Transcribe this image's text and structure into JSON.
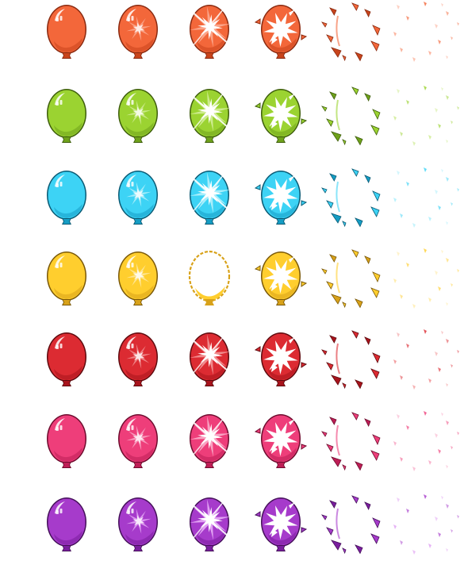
{
  "sprite_sheet": {
    "frame_stages": [
      "intact",
      "sparkle",
      "burst-flash",
      "shatter",
      "fragments",
      "scatter",
      "fade"
    ],
    "rows": [
      {
        "color_name": "orange",
        "fill": "#F3673A",
        "dark": "#C8441C",
        "light": "#FBA489",
        "outline": "#8A2A10"
      },
      {
        "color_name": "lime",
        "fill": "#9BD331",
        "dark": "#6FA21B",
        "light": "#CDEB8E",
        "outline": "#3E5E0C"
      },
      {
        "color_name": "cyan",
        "fill": "#3DD3F5",
        "dark": "#159DC4",
        "light": "#A8EEFB",
        "outline": "#0A5A74"
      },
      {
        "color_name": "yellow",
        "fill": "#FFCE2E",
        "dark": "#D8A21A",
        "light": "#FFE89A",
        "outline": "#7A5808"
      },
      {
        "color_name": "red",
        "fill": "#DC2B32",
        "dark": "#A8141C",
        "light": "#F08A8C",
        "outline": "#5E0A0E"
      },
      {
        "color_name": "pink",
        "fill": "#EE3E7A",
        "dark": "#BE1E56",
        "light": "#F8A2C2",
        "outline": "#6E0C2E"
      },
      {
        "color_name": "purple",
        "fill": "#A63BCB",
        "dark": "#7A1E9E",
        "light": "#E0A0F2",
        "outline": "#45105A"
      }
    ]
  }
}
